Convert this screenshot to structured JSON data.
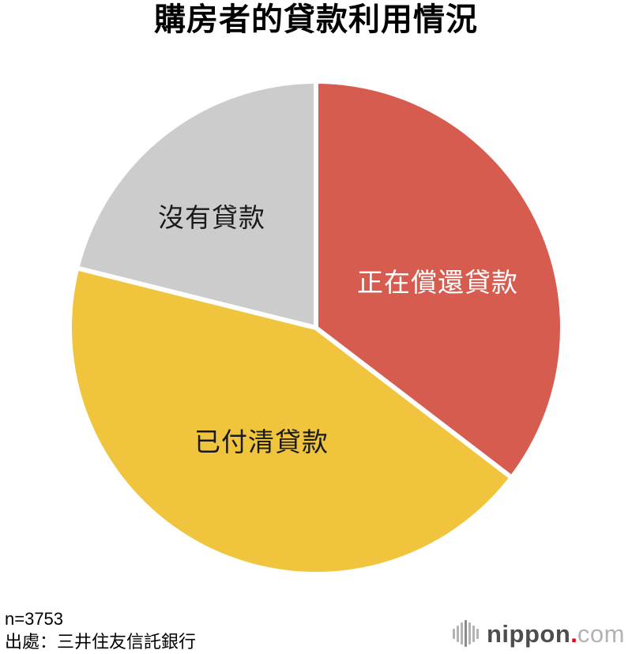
{
  "chart_data": {
    "type": "pie",
    "title": "購房者的貸款利用情況",
    "start_angle_deg": 0,
    "direction": "clockwise",
    "separator_color": "#ffffff",
    "slices": [
      {
        "label": "正在償還貸款",
        "value": 35.4,
        "color": "#d65c50",
        "label_color": "#ffffff"
      },
      {
        "label": "已付清貸款",
        "value": 43.5,
        "color": "#f0c53d",
        "label_color": "#1a1a1a"
      },
      {
        "label": "沒有貸款",
        "value": 21.1,
        "color": "#cccccc",
        "label_color": "#1a1a1a"
      }
    ]
  },
  "footnote": {
    "sample_size": "n=3753",
    "source": "出處：三井住友信託銀行"
  },
  "logo": {
    "name": "nippon",
    "dot": ".",
    "com": "com"
  }
}
